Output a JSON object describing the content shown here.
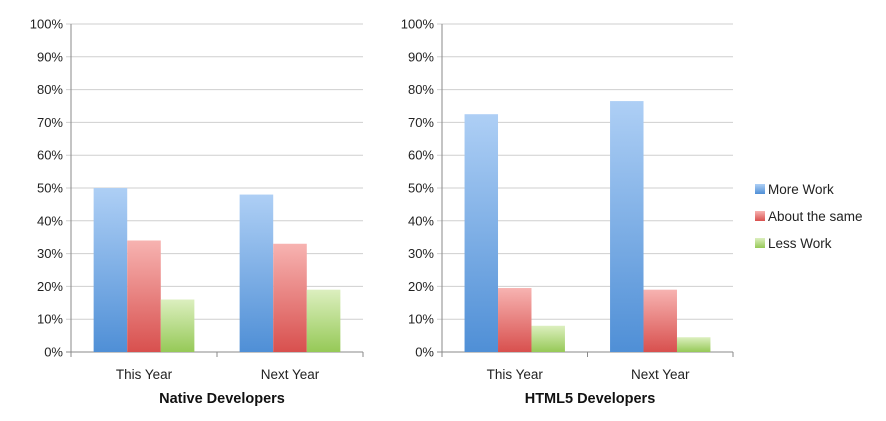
{
  "chart_data": [
    {
      "type": "bar",
      "title": "Native Developers",
      "categories": [
        "This Year",
        "Next Year"
      ],
      "ylim": [
        0,
        100
      ],
      "yticks": [
        "0%",
        "10%",
        "20%",
        "30%",
        "40%",
        "50%",
        "60%",
        "70%",
        "80%",
        "90%",
        "100%"
      ],
      "grid": true,
      "series": [
        {
          "name": "More Work",
          "values": [
            50,
            48
          ]
        },
        {
          "name": "About the same",
          "values": [
            34,
            33
          ]
        },
        {
          "name": "Less Work",
          "values": [
            16,
            19
          ]
        }
      ]
    },
    {
      "type": "bar",
      "title": "HTML5 Developers",
      "categories": [
        "This Year",
        "Next Year"
      ],
      "ylim": [
        0,
        100
      ],
      "yticks": [
        "0%",
        "10%",
        "20%",
        "30%",
        "40%",
        "50%",
        "60%",
        "70%",
        "80%",
        "90%",
        "100%"
      ],
      "grid": true,
      "series": [
        {
          "name": "More Work",
          "values": [
            72.5,
            76.5
          ]
        },
        {
          "name": "About the same",
          "values": [
            19.5,
            19
          ]
        },
        {
          "name": "Less Work",
          "values": [
            8,
            4.5
          ]
        }
      ]
    }
  ],
  "legend": {
    "placement": "right",
    "items": [
      {
        "label": "More Work",
        "color": "#4f8fd6"
      },
      {
        "label": "About the same",
        "color": "#e05a58"
      },
      {
        "label": "Less Work",
        "color": "#9ccf5a"
      }
    ]
  },
  "colors": {
    "More Work": [
      "#aecff5",
      "#4f8fd6"
    ],
    "About the same": [
      "#f7b3b1",
      "#d8504e"
    ],
    "Less Work": [
      "#dcefbf",
      "#96c957"
    ]
  }
}
